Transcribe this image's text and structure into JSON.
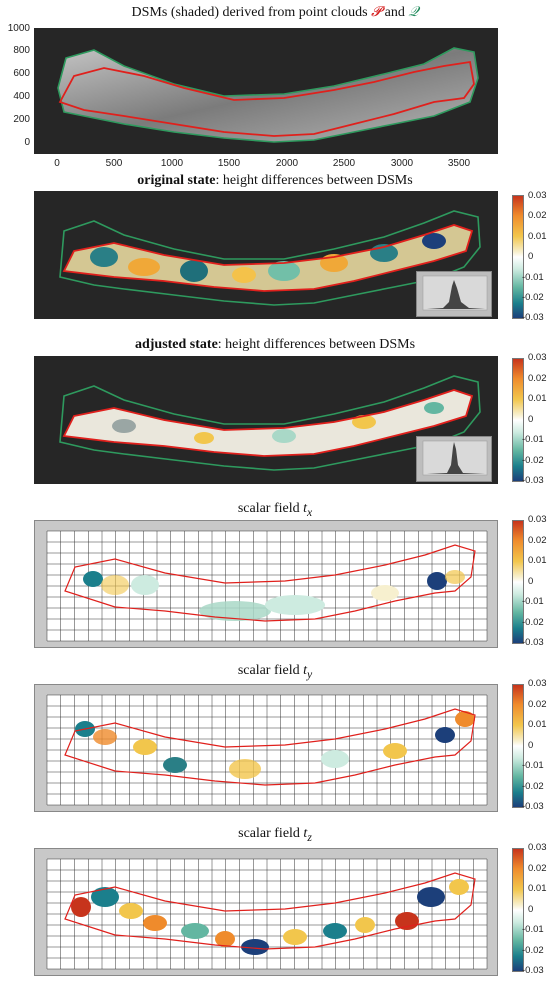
{
  "panel1": {
    "title_prefix": "DSMs (shaded) derived from point clouds ",
    "symbol_p": "𝓟",
    "and": " and ",
    "symbol_q": "𝒬",
    "yticks": [
      "1000",
      "800",
      "600",
      "400",
      "200",
      "0"
    ],
    "xticks": [
      "0",
      "500",
      "1000",
      "1500",
      "2000",
      "2500",
      "3000",
      "3500"
    ]
  },
  "panel2": {
    "title_bold": "original state",
    "title_rest": ": height differences between DSMs"
  },
  "panel3": {
    "title_bold": "adjusted state",
    "title_rest": ": height differences between DSMs"
  },
  "panel4": {
    "title_prefix": "scalar field ",
    "title_math": "t",
    "title_sub": "x"
  },
  "panel5": {
    "title_prefix": "scalar field ",
    "title_math": "t",
    "title_sub": "y"
  },
  "panel6": {
    "title_prefix": "scalar field ",
    "title_math": "t",
    "title_sub": "z"
  },
  "colorbar_ticks": [
    "0.03",
    "0.02",
    "0.01",
    "0",
    "-0.01",
    "-0.02",
    "-0.03"
  ],
  "colors": {
    "outline_p": "#e0201c",
    "outline_q": "#2e9a5e",
    "background_dark": "#262626",
    "background_grey": "#c8c8c8"
  }
}
